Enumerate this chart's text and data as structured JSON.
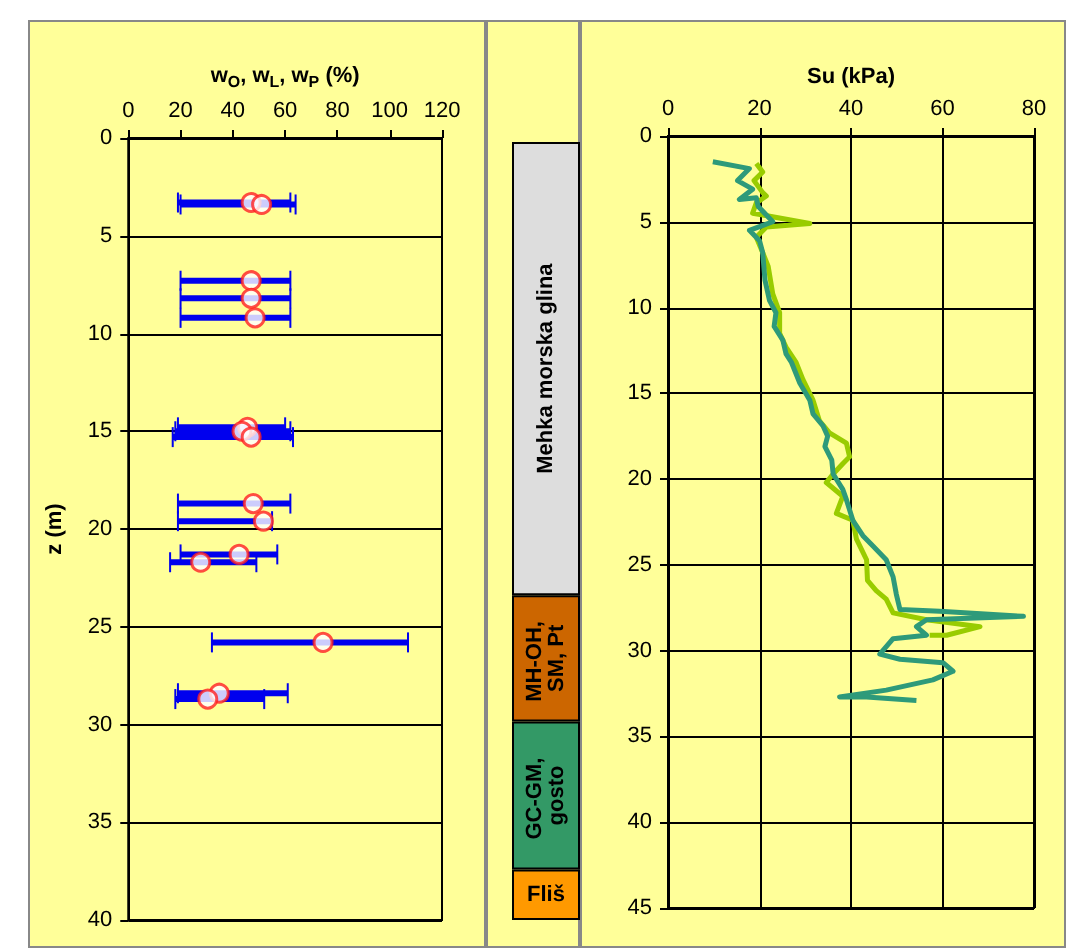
{
  "chart_data": [
    {
      "type": "scatter",
      "xlabel": "w$_{O}$, w$_{L}$, w$_{P}$ (%)",
      "ylabel": "z (m)",
      "color": "#ff2020",
      "marker": "circle",
      "x": [
        47,
        51,
        47,
        47,
        48.5,
        45.6,
        43.5,
        47,
        47.8,
        51.7,
        42.4,
        27.7,
        74.5,
        34.8,
        30.4
      ],
      "values": [
        3.3,
        3.4,
        7.3,
        8.2,
        9.2,
        14.8,
        15.0,
        15.3,
        18.7,
        19.6,
        21.3,
        21.7,
        25.8,
        28.4,
        28.7
      ],
      "xerrors": [
        [
          19,
          62
        ],
        [
          20,
          64
        ],
        [
          20,
          62
        ],
        [
          20,
          62
        ],
        [
          20,
          62
        ],
        [
          19,
          60
        ],
        [
          18,
          62
        ],
        [
          17,
          63
        ],
        [
          19,
          62
        ],
        [
          19,
          55
        ],
        [
          20,
          57
        ],
        [
          16,
          49
        ],
        [
          32,
          107
        ],
        [
          19,
          61
        ],
        [
          18,
          52
        ]
      ],
      "xlim": [
        0,
        120
      ],
      "xticks": [
        0,
        20,
        40,
        60,
        80,
        100,
        120
      ],
      "ylim": [
        40,
        0
      ],
      "yticks": [
        0,
        5,
        10,
        15,
        20,
        25,
        30,
        35,
        40
      ],
      "grid": "y"
    },
    {
      "type": "bar",
      "stacked": true,
      "categories": [
        null
      ],
      "ylim": [
        40,
        0
      ],
      "tick_labels": false,
      "series": [
        {
          "name": "Mehka morska glina",
          "color": "#dddddd",
          "values": [
            23.3
          ]
        },
        {
          "name": "MH-OH, SM, Pt",
          "color": "#cc6600",
          "values": [
            6.5
          ]
        },
        {
          "name": "GC-GM, gosto",
          "color": "#339966",
          "values": [
            7.6
          ]
        },
        {
          "name": "Fliš",
          "color": "#ff9900",
          "values": [
            2.6
          ]
        }
      ]
    },
    {
      "type": "line",
      "xlabel": "Su (kPa)",
      "marker": "none",
      "xlim": [
        0,
        80
      ],
      "xticks": [
        0,
        20,
        40,
        60,
        80
      ],
      "ylim": [
        45,
        0
      ],
      "yticks": [
        0,
        5,
        10,
        15,
        20,
        25,
        30,
        35,
        40,
        45
      ],
      "grid": true,
      "series": [
        {
          "color": "#99cc00",
          "x": [
            19.3,
            20.7,
            18.8,
            20.7,
            21.5,
            19.3,
            18.5,
            31,
            21.5,
            19.3,
            20.7,
            21.9,
            22.9,
            24.4,
            24.4,
            25.8,
            28,
            29.5,
            31.7,
            33.1,
            35.3,
            39,
            39.7,
            38.2,
            36.1,
            34.6,
            38.2,
            36.8,
            40.4,
            41.2,
            43.4,
            43.6,
            45.5,
            47.7,
            49.2,
            56.5,
            68.2,
            60.9,
            57.2
          ],
          "values": [
            1.6,
            2.1,
            2.6,
            3.3,
            3.5,
            3.9,
            4.5,
            5.1,
            5.3,
            5.9,
            6.8,
            7.6,
            9.2,
            10.3,
            11.5,
            12.3,
            13.2,
            14.2,
            15.4,
            16.6,
            17.3,
            17.9,
            18.7,
            19.1,
            19.7,
            20.2,
            21,
            22,
            22.4,
            23.5,
            24.7,
            25.9,
            26.5,
            27,
            27.8,
            28.2,
            28.6,
            29.1,
            29.1
          ]
        },
        {
          "color": "#2e9a7a",
          "x": [
            9.8,
            17.8,
            15.2,
            18.5,
            15.6,
            19.3,
            19.7,
            22.9,
            17.8,
            20,
            20.7,
            21.2,
            22.2,
            23.6,
            23.2,
            25.1,
            25.8,
            27,
            28.8,
            31,
            31.7,
            33.9,
            34.9,
            34.3,
            35.8,
            36.1,
            38.2,
            39,
            40.4,
            42.6,
            44.8,
            47.7,
            49.2,
            49.9,
            50.7,
            59.4,
            77.7,
            56.5,
            54.3,
            56.5,
            49.2,
            46.3,
            50.7,
            60.1,
            62.3,
            57.9,
            47.7,
            37.5,
            43.4,
            54.3
          ],
          "values": [
            1.5,
            1.9,
            2.6,
            3.1,
            3.7,
            3.6,
            4.1,
            5.0,
            5.5,
            6.1,
            6.8,
            8.4,
            9.6,
            10.3,
            11.1,
            11.9,
            12.7,
            13.2,
            14.4,
            15.4,
            16.2,
            16.9,
            17.5,
            18.1,
            18.9,
            19.7,
            20.6,
            21.2,
            22.4,
            23.3,
            23.9,
            24.7,
            25.7,
            26.7,
            27.6,
            27.7,
            28.0,
            28.2,
            28.6,
            29.1,
            29.3,
            30.2,
            30.5,
            30.7,
            31.2,
            31.7,
            32.3,
            32.7,
            32.7,
            32.9
          ]
        }
      ]
    }
  ]
}
